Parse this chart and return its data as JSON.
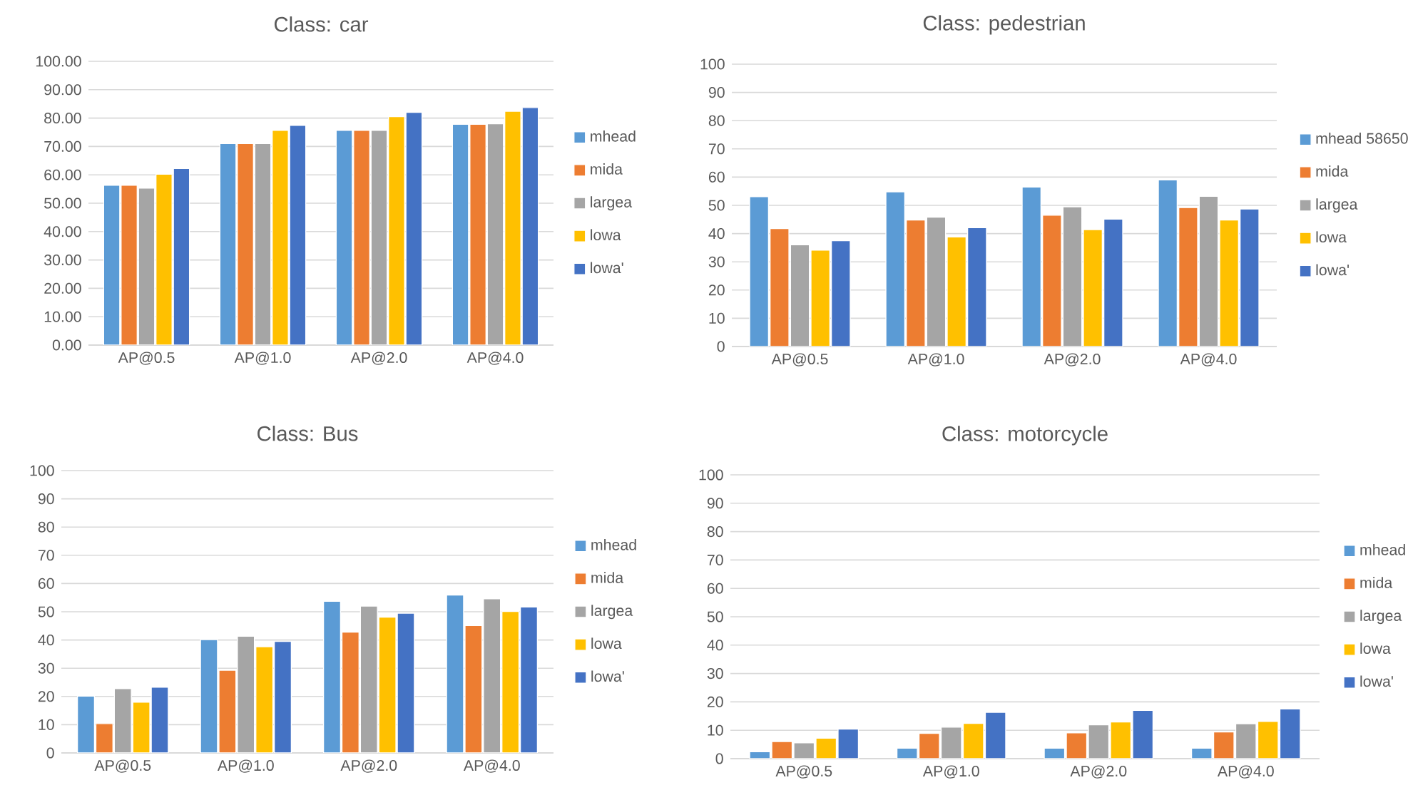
{
  "chart_data": [
    {
      "type": "bar",
      "title": "Class: car",
      "categories": [
        "AP@0.5",
        "AP@1.0",
        "AP@2.0",
        "AP@4.0"
      ],
      "ylim": [
        0,
        100
      ],
      "yticks": [
        {
          "value": 0,
          "label": "0.00"
        },
        {
          "value": 10,
          "label": "10.00"
        },
        {
          "value": 20,
          "label": "20.00"
        },
        {
          "value": 30,
          "label": "30.00"
        },
        {
          "value": 40,
          "label": "40.00"
        },
        {
          "value": 50,
          "label": "50.00"
        },
        {
          "value": 60,
          "label": "60.00"
        },
        {
          "value": 70,
          "label": "70.00"
        },
        {
          "value": 80,
          "label": "80.00"
        },
        {
          "value": 90,
          "label": "90.00"
        },
        {
          "value": 100,
          "label": "100.00"
        }
      ],
      "grid": "y",
      "legend": "right",
      "series": [
        {
          "name": "mhead",
          "color": "#5b9bd5",
          "values": [
            56.3,
            71,
            75.7,
            77.8
          ]
        },
        {
          "name": "mida",
          "color": "#ed7d31",
          "values": [
            56.3,
            71,
            75.7,
            77.8
          ]
        },
        {
          "name": "largea",
          "color": "#a5a5a5",
          "values": [
            55.3,
            71,
            75.7,
            78
          ]
        },
        {
          "name": "lowa",
          "color": "#ffc000",
          "values": [
            60.2,
            75.7,
            80.5,
            82.4
          ]
        },
        {
          "name": "lowa'",
          "color": "#4472c4",
          "values": [
            62.2,
            77.4,
            82,
            83.7
          ]
        }
      ]
    },
    {
      "type": "bar",
      "title": "Class: pedestrian",
      "categories": [
        "AP@0.5",
        "AP@1.0",
        "AP@2.0",
        "AP@4.0"
      ],
      "ylim": [
        0,
        100
      ],
      "yticks": [
        0,
        10,
        20,
        30,
        40,
        50,
        60,
        70,
        80,
        90,
        100
      ],
      "grid": "y",
      "legend": "right",
      "series": [
        {
          "name": "mhead 58650",
          "color": "#5b9bd5",
          "values": [
            53.1,
            54.8,
            56.5,
            59
          ]
        },
        {
          "name": "mida",
          "color": "#ed7d31",
          "values": [
            41.8,
            44.8,
            46.5,
            49.2
          ]
        },
        {
          "name": "largea",
          "color": "#a5a5a5",
          "values": [
            36,
            45.8,
            49.5,
            53.2
          ]
        },
        {
          "name": "lowa",
          "color": "#ffc000",
          "values": [
            34.1,
            38.8,
            41.4,
            44.8
          ]
        },
        {
          "name": "lowa'",
          "color": "#4472c4",
          "values": [
            37.5,
            42.1,
            45.1,
            48.7
          ]
        }
      ]
    },
    {
      "type": "bar",
      "title": "Class: Bus",
      "categories": [
        "AP@0.5",
        "AP@1.0",
        "AP@2.0",
        "AP@4.0"
      ],
      "ylim": [
        0,
        100
      ],
      "yticks": [
        0,
        10,
        20,
        30,
        40,
        50,
        60,
        70,
        80,
        90,
        100
      ],
      "grid": "y",
      "legend": "right",
      "series": [
        {
          "name": "mhead",
          "color": "#5b9bd5",
          "values": [
            20.1,
            40.1,
            53.7,
            55.9
          ]
        },
        {
          "name": "mida",
          "color": "#ed7d31",
          "values": [
            10.4,
            29.3,
            42.8,
            45.1
          ]
        },
        {
          "name": "largea",
          "color": "#a5a5a5",
          "values": [
            22.8,
            41.3,
            52,
            54.6
          ]
        },
        {
          "name": "lowa",
          "color": "#ffc000",
          "values": [
            18,
            37.6,
            48.1,
            50.1
          ]
        },
        {
          "name": "lowa'",
          "color": "#4472c4",
          "values": [
            23.3,
            39.5,
            49.5,
            51.7
          ]
        }
      ]
    },
    {
      "type": "bar",
      "title": "Class: motorcycle",
      "categories": [
        "AP@0.5",
        "AP@1.0",
        "AP@2.0",
        "AP@4.0"
      ],
      "ylim": [
        0,
        100
      ],
      "yticks": [
        0,
        10,
        20,
        30,
        40,
        50,
        60,
        70,
        80,
        90,
        100
      ],
      "grid": "y",
      "legend": "right",
      "series": [
        {
          "name": "mhead",
          "color": "#5b9bd5",
          "values": [
            2.4,
            3.7,
            3.7,
            3.7
          ]
        },
        {
          "name": "mida",
          "color": "#ed7d31",
          "values": [
            6,
            8.9,
            9.1,
            9.4
          ]
        },
        {
          "name": "largea",
          "color": "#a5a5a5",
          "values": [
            5.6,
            11.1,
            11.9,
            12.3
          ]
        },
        {
          "name": "lowa",
          "color": "#ffc000",
          "values": [
            7.2,
            12.4,
            12.9,
            13.1
          ]
        },
        {
          "name": "lowa'",
          "color": "#4472c4",
          "values": [
            10.4,
            16.3,
            17,
            17.5
          ]
        }
      ]
    }
  ]
}
